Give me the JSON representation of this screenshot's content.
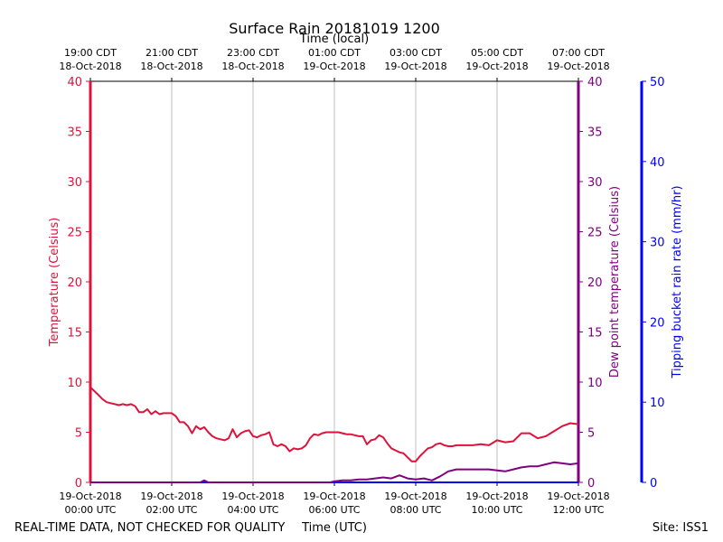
{
  "colors": {
    "temperature": "#dc143c",
    "dewpoint": "#800080",
    "rain": "#0000ff",
    "axis": "#000000",
    "grid": "#b0b0b0"
  },
  "footer": {
    "disclaimer": "REAL-TIME DATA, NOT CHECKED FOR QUALITY",
    "site": "Site: ISS1"
  },
  "chart_data": {
    "type": "line",
    "title": "Surface Rain 20181019 1200",
    "xlabel": "Time (UTC)",
    "x2label": "Time (local)",
    "ylabel": "Temperature (Celsius)",
    "y2label": "Dew point temperature (Celsius)",
    "y3label": "Tipping bucket rain rate (mm/hr)",
    "xlim": [
      0,
      12
    ],
    "ylim": [
      0,
      40
    ],
    "y3lim": [
      0,
      50
    ],
    "grid": "vertical",
    "x_ticks": [
      {
        "value": 0,
        "line1": "19-Oct-2018",
        "line2": "00:00 UTC"
      },
      {
        "value": 2,
        "line1": "19-Oct-2018",
        "line2": "02:00 UTC"
      },
      {
        "value": 4,
        "line1": "19-Oct-2018",
        "line2": "04:00 UTC"
      },
      {
        "value": 6,
        "line1": "19-Oct-2018",
        "line2": "06:00 UTC"
      },
      {
        "value": 8,
        "line1": "19-Oct-2018",
        "line2": "08:00 UTC"
      },
      {
        "value": 10,
        "line1": "19-Oct-2018",
        "line2": "10:00 UTC"
      },
      {
        "value": 12,
        "line1": "19-Oct-2018",
        "line2": "12:00 UTC"
      }
    ],
    "x_top_ticks": [
      {
        "value": 0,
        "line1": "19:00 CDT",
        "line2": "18-Oct-2018"
      },
      {
        "value": 2,
        "line1": "21:00 CDT",
        "line2": "18-Oct-2018"
      },
      {
        "value": 4,
        "line1": "23:00 CDT",
        "line2": "18-Oct-2018"
      },
      {
        "value": 6,
        "line1": "01:00 CDT",
        "line2": "19-Oct-2018"
      },
      {
        "value": 8,
        "line1": "03:00 CDT",
        "line2": "19-Oct-2018"
      },
      {
        "value": 10,
        "line1": "05:00 CDT",
        "line2": "19-Oct-2018"
      },
      {
        "value": 12,
        "line1": "07:00 CDT",
        "line2": "19-Oct-2018"
      }
    ],
    "y_ticks": [
      0,
      5,
      10,
      15,
      20,
      25,
      30,
      35,
      40
    ],
    "y3_ticks": [
      0,
      10,
      20,
      30,
      40,
      50
    ],
    "series": [
      {
        "name": "Temperature",
        "axis": "left",
        "x": [
          0,
          0.1,
          0.2,
          0.3,
          0.4,
          0.5,
          0.6,
          0.7,
          0.8,
          0.9,
          1.0,
          1.1,
          1.2,
          1.3,
          1.4,
          1.5,
          1.6,
          1.7,
          1.8,
          1.9,
          2.0,
          2.1,
          2.2,
          2.3,
          2.4,
          2.5,
          2.6,
          2.7,
          2.8,
          2.9,
          3.0,
          3.1,
          3.2,
          3.3,
          3.4,
          3.5,
          3.6,
          3.7,
          3.8,
          3.9,
          4.0,
          4.1,
          4.2,
          4.3,
          4.4,
          4.5,
          4.6,
          4.7,
          4.8,
          4.9,
          5.0,
          5.1,
          5.2,
          5.3,
          5.4,
          5.5,
          5.6,
          5.7,
          5.8,
          5.9,
          6.0,
          6.1,
          6.2,
          6.3,
          6.4,
          6.5,
          6.6,
          6.7,
          6.8,
          6.9,
          7.0,
          7.1,
          7.2,
          7.3,
          7.4,
          7.5,
          7.6,
          7.7,
          7.8,
          7.9,
          8.0,
          8.1,
          8.2,
          8.3,
          8.4,
          8.5,
          8.6,
          8.7,
          8.8,
          8.9,
          9.0,
          9.2,
          9.4,
          9.6,
          9.8,
          10.0,
          10.2,
          10.4,
          10.6,
          10.8,
          11.0,
          11.2,
          11.4,
          11.6,
          11.8,
          12.0
        ],
        "values": [
          9.5,
          9.1,
          8.7,
          8.3,
          8.0,
          7.9,
          7.8,
          7.7,
          7.8,
          7.7,
          7.8,
          7.6,
          7.0,
          7.0,
          7.3,
          6.8,
          7.1,
          6.8,
          6.9,
          6.9,
          6.9,
          6.6,
          6.0,
          6.0,
          5.6,
          4.9,
          5.6,
          5.3,
          5.5,
          5.0,
          4.6,
          4.4,
          4.3,
          4.2,
          4.4,
          5.3,
          4.5,
          4.9,
          5.1,
          5.2,
          4.6,
          4.5,
          4.7,
          4.8,
          5.0,
          3.8,
          3.6,
          3.8,
          3.6,
          3.1,
          3.4,
          3.3,
          3.4,
          3.7,
          4.4,
          4.8,
          4.7,
          4.9,
          5.0,
          5.0,
          5.0,
          5.0,
          4.9,
          4.8,
          4.8,
          4.7,
          4.6,
          4.6,
          3.8,
          4.2,
          4.3,
          4.7,
          4.5,
          3.9,
          3.4,
          3.2,
          3.0,
          2.9,
          2.5,
          2.1,
          2.1,
          2.6,
          3.0,
          3.4,
          3.5,
          3.8,
          3.9,
          3.7,
          3.6,
          3.6,
          3.7,
          3.7,
          3.7,
          3.8,
          3.7,
          4.2,
          4.0,
          4.1,
          4.9,
          4.9,
          4.4,
          4.6,
          5.1,
          5.6,
          5.9,
          5.8
        ]
      },
      {
        "name": "Dew point",
        "axis": "right",
        "x": [
          0,
          2.7,
          2.8,
          2.9,
          5.9,
          6.0,
          6.2,
          6.4,
          6.6,
          6.8,
          7.0,
          7.2,
          7.4,
          7.6,
          7.8,
          8.0,
          8.2,
          8.4,
          8.6,
          8.8,
          9.0,
          9.2,
          9.4,
          9.6,
          9.8,
          10.0,
          10.2,
          10.4,
          10.6,
          10.8,
          11.0,
          11.2,
          11.4,
          11.6,
          11.8,
          12.0
        ],
        "values": [
          0.0,
          0.0,
          0.2,
          0.0,
          0.0,
          0.1,
          0.2,
          0.2,
          0.3,
          0.3,
          0.4,
          0.5,
          0.4,
          0.7,
          0.4,
          0.3,
          0.4,
          0.2,
          0.6,
          1.1,
          1.3,
          1.3,
          1.3,
          1.3,
          1.3,
          1.2,
          1.1,
          1.3,
          1.5,
          1.6,
          1.6,
          1.8,
          2.0,
          1.9,
          1.8,
          1.9
        ]
      },
      {
        "name": "Rain rate",
        "axis": "right-outer",
        "x": [
          0,
          12
        ],
        "values": [
          0,
          0
        ]
      }
    ]
  }
}
